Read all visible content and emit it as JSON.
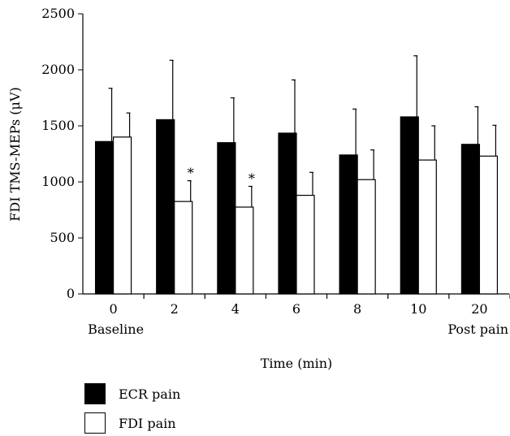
{
  "chart_data": {
    "type": "bar",
    "categories": [
      "0",
      "2",
      "4",
      "6",
      "8",
      "10",
      "20"
    ],
    "category_sublabels": {
      "first": "Baseline",
      "last": "Post pain"
    },
    "series": [
      {
        "name": "ECR pain",
        "color": "#000000",
        "values": [
          1360,
          1555,
          1350,
          1435,
          1240,
          1580,
          1335
        ],
        "errors": [
          475,
          530,
          400,
          475,
          410,
          545,
          335
        ]
      },
      {
        "name": "FDI pain",
        "color": "#ffffff",
        "values": [
          1400,
          825,
          775,
          880,
          1020,
          1195,
          1230
        ],
        "errors": [
          215,
          185,
          185,
          205,
          265,
          305,
          275
        ],
        "significance": [
          "",
          "*",
          "*",
          "",
          "",
          "",
          ""
        ]
      }
    ],
    "xlabel": "Time (min)",
    "ylabel": "FDI TMS-MEPs (μV)",
    "ylim": [
      0,
      2500
    ],
    "yticks": [
      "0",
      "500",
      "1000",
      "1500",
      "2000",
      "2500"
    ],
    "grid": false,
    "legend_position": "bottom-left"
  }
}
